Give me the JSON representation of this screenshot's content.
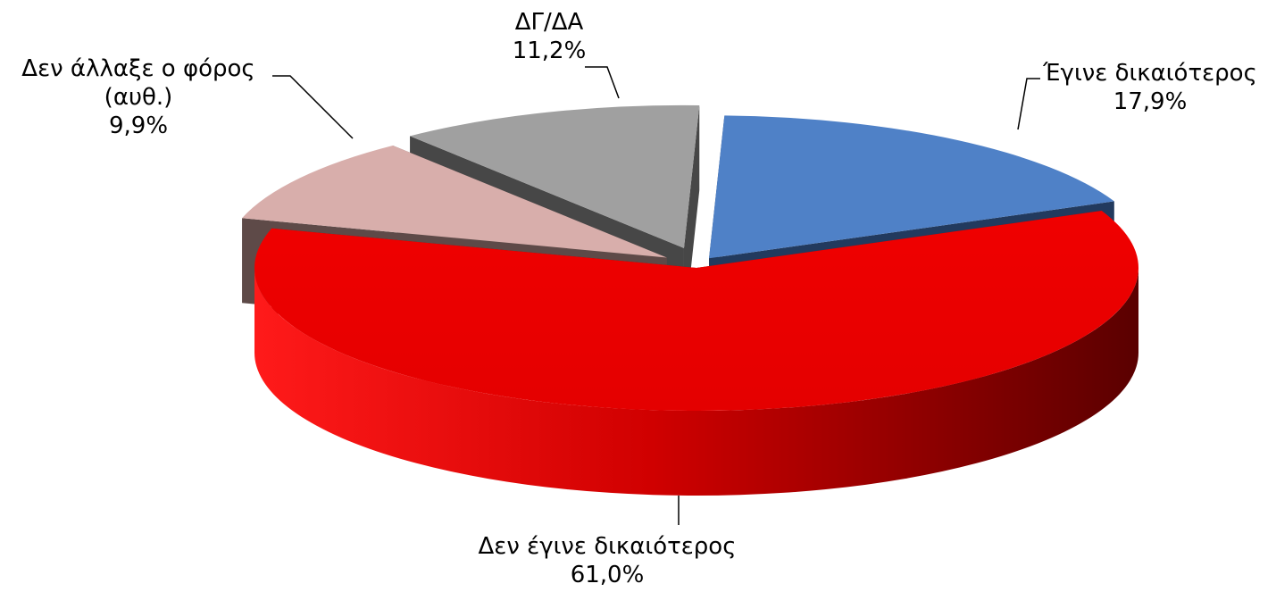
{
  "chart_data": {
    "type": "pie",
    "style": "3d-exploded",
    "title": "",
    "slices": [
      {
        "label": "Έγινε δικαιότερος",
        "label_lines": [
          "Έγινε δικαιότερος"
        ],
        "value": 17.9,
        "value_text": "17,9%",
        "color": "#4f81c7",
        "side_color": "#223a5e"
      },
      {
        "label": "Δεν έγινε δικαιότερος",
        "label_lines": [
          "Δεν έγινε δικαιότερος"
        ],
        "value": 61.0,
        "value_text": "61,0%",
        "color": "#ee0000",
        "side_color": "#8a0000"
      },
      {
        "label": "Δεν άλλαξε ο φόρος (αυθ.)",
        "label_lines": [
          "Δεν άλλαξε ο φόρος",
          "(αυθ.)"
        ],
        "value": 9.9,
        "value_text": "9,9%",
        "color": "#d8aeab",
        "side_color": "#5e4a48"
      },
      {
        "label": "ΔΓ/ΔΑ",
        "label_lines": [
          "ΔΓ/ΔΑ"
        ],
        "value": 11.2,
        "value_text": "11,2%",
        "color": "#a0a0a0",
        "side_color": "#474747"
      }
    ],
    "start_angle_deg": 2,
    "legend": "none",
    "data_labels": "outside with leader lines"
  }
}
